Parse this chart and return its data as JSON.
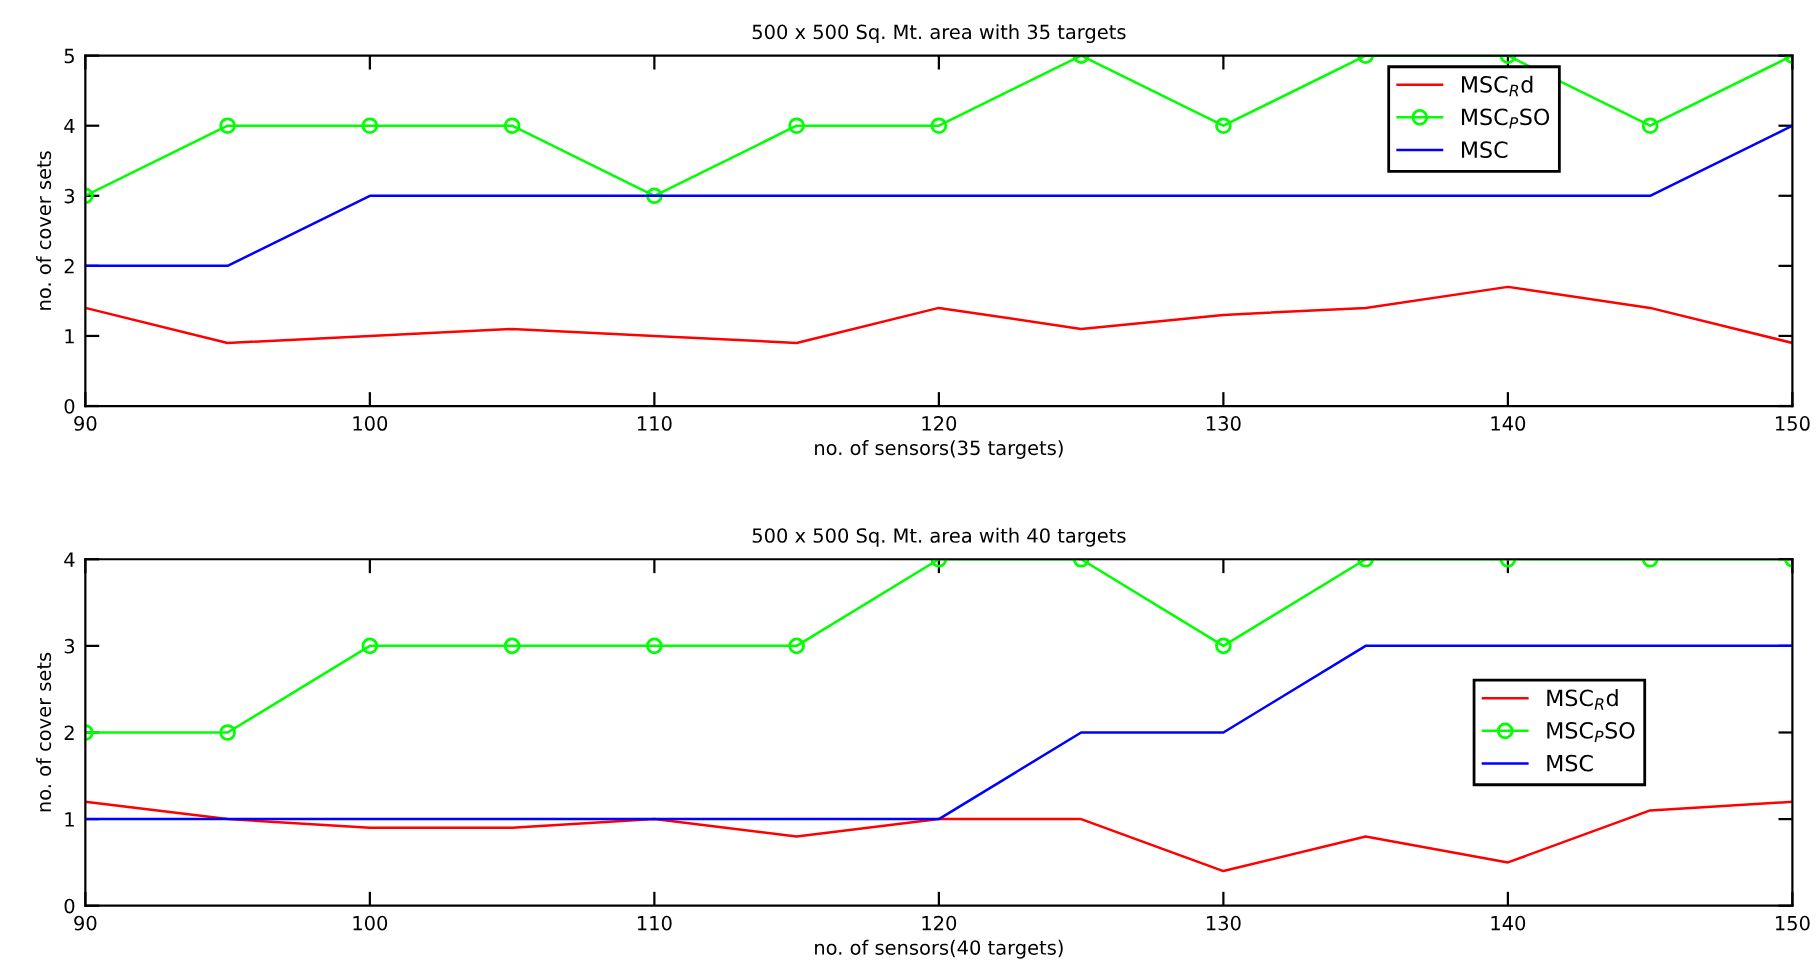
{
  "chart_data": [
    {
      "type": "line",
      "title": "500 x 500 Sq. Mt. area with 35 targets",
      "xlabel": "no. of sensors(35 targets)",
      "ylabel": "no. of cover sets",
      "x": [
        90,
        95,
        100,
        105,
        110,
        115,
        120,
        125,
        130,
        135,
        140,
        145,
        150
      ],
      "xlim": [
        90,
        150
      ],
      "xticks": [
        90,
        100,
        110,
        120,
        130,
        140,
        150
      ],
      "ylim": [
        0,
        5
      ],
      "yticks": [
        0,
        1,
        2,
        3,
        4,
        5
      ],
      "legend": "top right",
      "grid": false,
      "series": [
        {
          "name": "MSC$_{R}$d",
          "color": "#ff0000",
          "marker": "none",
          "values": [
            1.4,
            0.9,
            1.0,
            1.1,
            1.0,
            0.9,
            1.4,
            1.1,
            1.3,
            1.4,
            1.7,
            1.4,
            0.9
          ]
        },
        {
          "name": "MSC$_{P}$SO",
          "color": "#00ff00",
          "marker": "circle",
          "values": [
            3,
            4,
            4,
            4,
            3,
            4,
            4,
            5,
            4,
            5,
            5,
            4,
            5
          ]
        },
        {
          "name": "MSC",
          "color": "#0000ff",
          "marker": "none",
          "values": [
            2,
            2,
            3,
            3,
            3,
            3,
            3,
            3,
            3,
            3,
            3,
            3,
            4
          ]
        }
      ]
    },
    {
      "type": "line",
      "title": "500 x 500 Sq. Mt. area with 40 targets",
      "xlabel": "no. of sensors(40 targets)",
      "ylabel": "no. of cover sets",
      "x": [
        90,
        95,
        100,
        105,
        110,
        115,
        120,
        125,
        130,
        135,
        140,
        145,
        150
      ],
      "xlim": [
        90,
        150
      ],
      "xticks": [
        90,
        100,
        110,
        120,
        130,
        140,
        150
      ],
      "ylim": [
        0,
        4
      ],
      "yticks": [
        0,
        1,
        2,
        3,
        4
      ],
      "legend": "right",
      "grid": false,
      "series": [
        {
          "name": "MSC$_{R}$d",
          "color": "#ff0000",
          "marker": "none",
          "values": [
            1.2,
            1.0,
            0.9,
            0.9,
            1.0,
            0.8,
            1.0,
            1.0,
            0.4,
            0.8,
            0.5,
            1.1,
            1.2
          ]
        },
        {
          "name": "MSC$_{P}$SO",
          "color": "#00ff00",
          "marker": "circle",
          "values": [
            2,
            2,
            3,
            3,
            3,
            3,
            4,
            4,
            3,
            4,
            4,
            4,
            4
          ]
        },
        {
          "name": "MSC",
          "color": "#0000ff",
          "marker": "none",
          "values": [
            1,
            1,
            1,
            1,
            1,
            1,
            1,
            2,
            2,
            3,
            3,
            3,
            3
          ]
        }
      ]
    }
  ]
}
